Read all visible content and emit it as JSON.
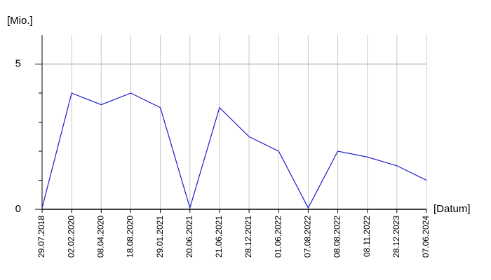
{
  "chart_data": {
    "type": "line",
    "y_label": "[Mio.]",
    "x_label": "[Datum]",
    "categories": [
      "29.07.2018",
      "02.02.2020",
      "08.04.2020",
      "18.08.2020",
      "29.01.2021",
      "20.06.2021",
      "21.06.2021",
      "28.12.2021",
      "01.06.2022",
      "07.08.2022",
      "08.08.2022",
      "08.11.2022",
      "28.12.2023",
      "07.06.2024"
    ],
    "series": [
      {
        "name": "Mio.",
        "color": "#1a1acc",
        "values": [
          0.05,
          4.0,
          3.6,
          4.0,
          3.5,
          0.05,
          3.5,
          2.5,
          2.0,
          0.05,
          2.0,
          1.8,
          1.5,
          1.0
        ]
      }
    ],
    "ylim": [
      0,
      6
    ],
    "yticks": [
      0,
      5
    ],
    "yminorticks": [
      1,
      2,
      3,
      4
    ],
    "grid": true
  }
}
